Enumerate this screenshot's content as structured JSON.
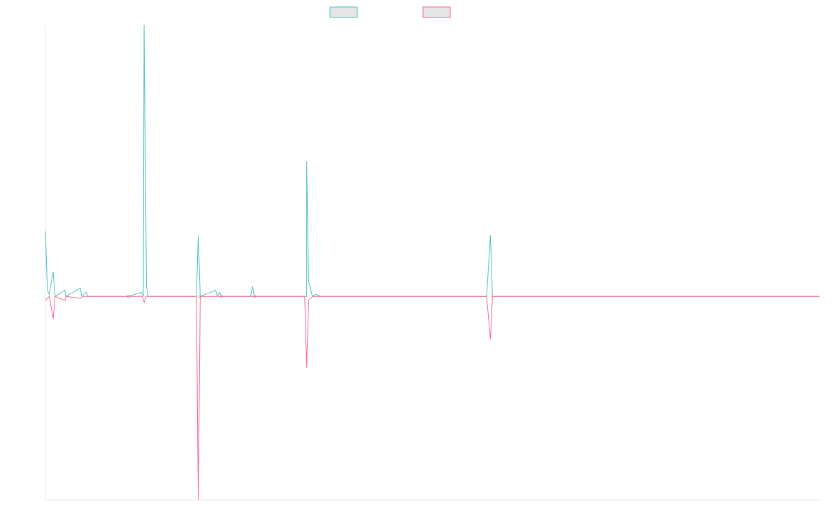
{
  "chart_data": {
    "type": "line",
    "title": "",
    "xlabel": "",
    "ylabel": "",
    "legend": "top-center",
    "grid": false,
    "x_range": [
      0,
      200
    ],
    "ylim": [
      -1.0,
      1.33
    ],
    "series": [
      {
        "name": "",
        "color": "#4bc0c0",
        "fill": "#e6e6e6",
        "points": [
          [
            0,
            0.32
          ],
          [
            0.5,
            0.03
          ],
          [
            1,
            0.01
          ],
          [
            2,
            0.12
          ],
          [
            2.5,
            0.0
          ],
          [
            5,
            0.03
          ],
          [
            5.3,
            0.0
          ],
          [
            9,
            0.04
          ],
          [
            9.4,
            0.0
          ],
          [
            10.5,
            0.02
          ],
          [
            11,
            0.0
          ],
          [
            15.5,
            0.0
          ],
          [
            18,
            0.0
          ],
          [
            21.5,
            0.0
          ],
          [
            24.8,
            0.02
          ],
          [
            25.3,
            0.0
          ],
          [
            25.5,
            1.33
          ],
          [
            26.1,
            0.05
          ],
          [
            26.6,
            0.0
          ],
          [
            39,
            0.0
          ],
          [
            39.5,
            0.3
          ],
          [
            40,
            0.0
          ],
          [
            44,
            0.03
          ],
          [
            44.4,
            0.0
          ],
          [
            45,
            0.02
          ],
          [
            45.5,
            0.0
          ],
          [
            47,
            0.0
          ],
          [
            53,
            0.0
          ],
          [
            53.5,
            0.05
          ],
          [
            54,
            0.0
          ],
          [
            67.5,
            0.0
          ],
          [
            67.5,
            0.66
          ],
          [
            68,
            0.07
          ],
          [
            69,
            0.0
          ],
          [
            70,
            0.01
          ],
          [
            71,
            0.0
          ],
          [
            114,
            0.0
          ],
          [
            115,
            0.3
          ],
          [
            115.5,
            0.0
          ],
          [
            200,
            0.0
          ]
        ]
      },
      {
        "name": "",
        "color": "#ff6384",
        "fill": "#e6e6e6",
        "points": [
          [
            0,
            -0.02
          ],
          [
            1,
            0.0
          ],
          [
            2,
            -0.11
          ],
          [
            2.5,
            0.0
          ],
          [
            5,
            -0.02
          ],
          [
            5.3,
            0.0
          ],
          [
            9,
            -0.01
          ],
          [
            10,
            0.0
          ],
          [
            25,
            0.0
          ],
          [
            25.5,
            -0.03
          ],
          [
            26,
            0.0
          ],
          [
            39,
            0.0
          ],
          [
            39.5,
            -1.0
          ],
          [
            40,
            0.0
          ],
          [
            67,
            0.0
          ],
          [
            67.5,
            -0.35
          ],
          [
            68,
            -0.02
          ],
          [
            69,
            0.0
          ],
          [
            114,
            0.0
          ],
          [
            115,
            -0.21
          ],
          [
            115.5,
            0.0
          ],
          [
            200,
            0.0
          ]
        ]
      }
    ]
  }
}
